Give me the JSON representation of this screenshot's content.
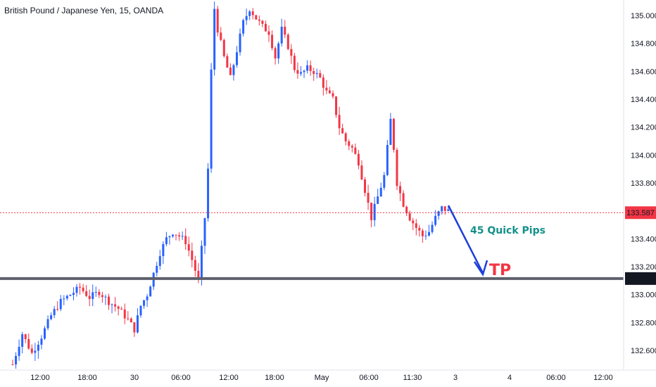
{
  "header": {
    "symbol_text": "British Pound / Japanese Yen, 15, OANDA"
  },
  "colors": {
    "up": "#2962ff",
    "down": "#f23645",
    "current_price": "#f23645",
    "support_line": "#5d606b",
    "annotation_text": "#13908a",
    "arrow": "#1e40d8",
    "tp": "#f23645"
  },
  "chart_data": {
    "type": "candlestick",
    "ylim": [
      132.5,
      135.1
    ],
    "y_ticks": [
      {
        "value": 135.0,
        "label": "135.000"
      },
      {
        "value": 134.8,
        "label": "134.800"
      },
      {
        "value": 134.6,
        "label": "134.600"
      },
      {
        "value": 134.4,
        "label": "134.400"
      },
      {
        "value": 134.2,
        "label": "134.200"
      },
      {
        "value": 134.0,
        "label": "134.000"
      },
      {
        "value": 133.8,
        "label": "133.800"
      },
      {
        "value": 133.4,
        "label": "133.400"
      },
      {
        "value": 133.2,
        "label": "133.200"
      },
      {
        "value": 133.0,
        "label": "133.000"
      },
      {
        "value": 132.8,
        "label": "132.800"
      },
      {
        "value": 132.6,
        "label": "132.600"
      }
    ],
    "x_ticks": [
      "12:00",
      "18:00",
      "30",
      "06:00",
      "12:00",
      "18:00",
      "May",
      "06:00",
      "11:30",
      "3",
      "4",
      "06:00",
      "12:00"
    ],
    "current_price": {
      "value": 133.587,
      "label": "133.587"
    },
    "support_level": {
      "value": 133.115,
      "label": "133.115"
    },
    "price_path": [
      [
        0,
        132.5
      ],
      [
        3,
        132.72
      ],
      [
        6,
        132.58
      ],
      [
        9,
        132.7
      ],
      [
        12,
        132.85
      ],
      [
        15,
        132.95
      ],
      [
        18,
        133.0
      ],
      [
        21,
        133.05
      ],
      [
        24,
        132.98
      ],
      [
        27,
        133.02
      ],
      [
        30,
        132.95
      ],
      [
        33,
        132.9
      ],
      [
        36,
        132.82
      ],
      [
        38,
        132.75
      ],
      [
        40,
        132.92
      ],
      [
        42,
        133.0
      ],
      [
        44,
        133.15
      ],
      [
        46,
        133.3
      ],
      [
        48,
        133.4
      ],
      [
        50,
        133.45
      ],
      [
        52,
        133.42
      ],
      [
        54,
        133.38
      ],
      [
        56,
        133.25
      ],
      [
        58,
        133.1
      ],
      [
        60,
        133.55
      ],
      [
        61,
        133.9
      ],
      [
        62,
        134.6
      ],
      [
        63,
        135.05
      ],
      [
        64,
        134.9
      ],
      [
        66,
        134.7
      ],
      [
        68,
        134.55
      ],
      [
        70,
        134.75
      ],
      [
        72,
        134.95
      ],
      [
        74,
        135.05
      ],
      [
        76,
        134.98
      ],
      [
        78,
        134.92
      ],
      [
        80,
        134.88
      ],
      [
        82,
        134.7
      ],
      [
        84,
        134.9
      ],
      [
        86,
        134.78
      ],
      [
        88,
        134.62
      ],
      [
        90,
        134.58
      ],
      [
        92,
        134.62
      ],
      [
        94,
        134.6
      ],
      [
        96,
        134.55
      ],
      [
        98,
        134.45
      ],
      [
        100,
        134.4
      ],
      [
        102,
        134.2
      ],
      [
        104,
        134.1
      ],
      [
        106,
        134.05
      ],
      [
        108,
        133.95
      ],
      [
        110,
        133.75
      ],
      [
        112,
        133.55
      ],
      [
        114,
        133.7
      ],
      [
        116,
        133.85
      ],
      [
        117,
        134.05
      ],
      [
        118,
        134.25
      ],
      [
        119,
        134.05
      ],
      [
        120,
        133.8
      ],
      [
        122,
        133.65
      ],
      [
        124,
        133.55
      ],
      [
        126,
        133.48
      ],
      [
        128,
        133.42
      ],
      [
        130,
        133.45
      ],
      [
        132,
        133.55
      ],
      [
        134,
        133.62
      ],
      [
        136,
        133.6
      ]
    ]
  },
  "annotations": {
    "quick_pips": "45 Quick Pips",
    "tp": "TP"
  }
}
